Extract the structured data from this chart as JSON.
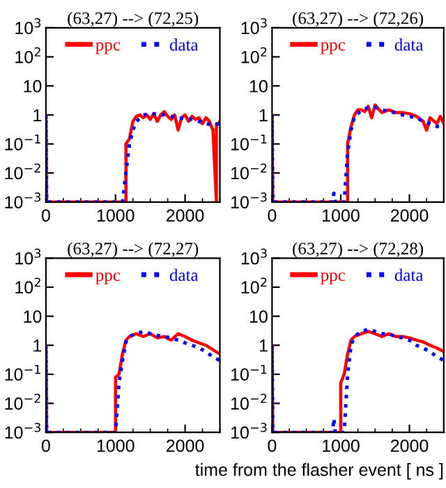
{
  "chart_data": [
    {
      "type": "line",
      "title": "(63,27) --> (72,25)",
      "log": "y",
      "xlim": [
        0,
        2500
      ],
      "xticks": [
        0,
        1000,
        2000
      ],
      "ylim": [
        0.001,
        1000
      ],
      "yticks": [
        {
          "value": 1000,
          "label": "10$^{3}$"
        },
        {
          "value": 100,
          "label": "10$^{2}$"
        },
        {
          "value": 10,
          "label": "10"
        },
        {
          "value": 1,
          "label": "1"
        },
        {
          "value": 0.1,
          "label": "10$^{−1}$"
        },
        {
          "value": 0.01,
          "label": "10$^{−2}$"
        },
        {
          "value": 0.001,
          "label": "10$^{−3}$"
        }
      ],
      "legend": "top",
      "grid": false,
      "series": [
        {
          "name": "ppc",
          "color": "#ff0000",
          "line_style": "solid",
          "x": [
            0,
            0,
            10,
            1150,
            1150,
            1200,
            1250,
            1300,
            1350,
            1400,
            1450,
            1500,
            1550,
            1600,
            1650,
            1700,
            1750,
            1800,
            1850,
            1900,
            1950,
            2000,
            2050,
            2100,
            2150,
            2200,
            2250,
            2300,
            2350,
            2400,
            2450,
            2450,
            2480,
            2500
          ],
          "values": [
            0.001,
            1,
            0.001,
            0.001,
            0.1,
            0.15,
            0.6,
            0.9,
            1.0,
            0.8,
            1.0,
            0.7,
            1.1,
            0.6,
            1.0,
            1.3,
            0.9,
            0.7,
            1.0,
            0.3,
            0.8,
            1.0,
            0.6,
            0.9,
            0.7,
            0.8,
            0.5,
            0.8,
            0.6,
            0.3,
            0.001,
            0.5,
            0.5,
            0.6
          ]
        },
        {
          "name": "data",
          "color": "#0000ff",
          "line_style": "dotted",
          "x": [
            0,
            0,
            10,
            1100,
            1150,
            1200,
            1250,
            1300,
            1400,
            1500,
            1600,
            1700,
            1800,
            1900,
            2000,
            2100,
            2200,
            2300,
            2400,
            2500
          ],
          "values": [
            0.001,
            1,
            0.001,
            0.001,
            0.01,
            0.1,
            0.3,
            0.6,
            1.0,
            1.1,
            1.1,
            1.0,
            0.9,
            0.8,
            0.75,
            0.7,
            0.6,
            0.5,
            0.45,
            0.5
          ]
        }
      ]
    },
    {
      "type": "line",
      "title": "(63,27) --> (72,26)",
      "log": "y",
      "xlim": [
        0,
        2500
      ],
      "xticks": [
        0,
        1000,
        2000
      ],
      "ylim": [
        0.001,
        1000
      ],
      "yticks": [
        {
          "value": 1000,
          "label": "10$^{3}$"
        },
        {
          "value": 100,
          "label": "10$^{2}$"
        },
        {
          "value": 10,
          "label": "10"
        },
        {
          "value": 1,
          "label": "1"
        },
        {
          "value": 0.1,
          "label": "10$^{−1}$"
        },
        {
          "value": 0.01,
          "label": "10$^{−2}$"
        },
        {
          "value": 0.001,
          "label": "10$^{−3}$"
        }
      ],
      "legend": "top",
      "grid": false,
      "series": [
        {
          "name": "ppc",
          "color": "#ff0000",
          "line_style": "solid",
          "x": [
            0,
            0,
            10,
            1100,
            1100,
            1150,
            1200,
            1250,
            1300,
            1350,
            1400,
            1450,
            1500,
            1550,
            1600,
            1700,
            1800,
            1900,
            2000,
            2100,
            2200,
            2250,
            2300,
            2400,
            2450,
            2500
          ],
          "values": [
            0.001,
            1,
            0.001,
            0.001,
            0.1,
            0.4,
            1.0,
            1.5,
            1.5,
            1.3,
            2.0,
            0.8,
            2.2,
            1.6,
            1.2,
            1.5,
            1.2,
            1.2,
            1.1,
            0.9,
            0.6,
            0.3,
            0.8,
            0.5,
            0.9,
            0.5
          ]
        },
        {
          "name": "data",
          "color": "#0000ff",
          "line_style": "dotted",
          "x": [
            0,
            0,
            10,
            880,
            900,
            920,
            1050,
            1100,
            1150,
            1200,
            1300,
            1400,
            1500,
            1600,
            1700,
            1800,
            1900,
            2000,
            2100,
            2200,
            2300,
            2400,
            2500
          ],
          "values": [
            0.001,
            1,
            0.001,
            0.001,
            0.002,
            0.001,
            0.001,
            0.05,
            0.3,
            0.9,
            1.4,
            1.8,
            1.8,
            1.5,
            1.3,
            1.2,
            1.0,
            0.9,
            0.8,
            0.6,
            0.5,
            0.4,
            0.4
          ]
        }
      ]
    },
    {
      "type": "line",
      "title": "(63,27) --> (72,27)",
      "log": "y",
      "xlim": [
        0,
        2500
      ],
      "xticks": [
        0,
        1000,
        2000
      ],
      "ylim": [
        0.001,
        1000
      ],
      "yticks": [
        {
          "value": 1000,
          "label": "10$^{3}$"
        },
        {
          "value": 100,
          "label": "10$^{2}$"
        },
        {
          "value": 10,
          "label": "10"
        },
        {
          "value": 1,
          "label": "1"
        },
        {
          "value": 0.1,
          "label": "10$^{−1}$"
        },
        {
          "value": 0.01,
          "label": "10$^{−2}$"
        },
        {
          "value": 0.001,
          "label": "10$^{−3}$"
        }
      ],
      "legend": "top",
      "grid": false,
      "series": [
        {
          "name": "ppc",
          "color": "#ff0000",
          "line_style": "solid",
          "x": [
            0,
            0,
            10,
            1000,
            1000,
            1050,
            1100,
            1150,
            1200,
            1300,
            1400,
            1500,
            1600,
            1700,
            1800,
            1900,
            2000,
            2100,
            2200,
            2300,
            2400,
            2500
          ],
          "values": [
            0.001,
            1,
            0.001,
            0.001,
            0.08,
            0.1,
            0.5,
            1.5,
            2.0,
            2.5,
            2.0,
            2.5,
            1.8,
            2.0,
            1.5,
            2.5,
            2.0,
            1.5,
            1.2,
            1.0,
            0.7,
            0.5
          ]
        },
        {
          "name": "data",
          "color": "#0000ff",
          "line_style": "dotted",
          "x": [
            0,
            0,
            10,
            1000,
            1050,
            1100,
            1150,
            1200,
            1300,
            1400,
            1500,
            1600,
            1700,
            1800,
            1900,
            2000,
            2100,
            2200,
            2300,
            2400,
            2500
          ],
          "values": [
            0.001,
            1,
            0.001,
            0.001,
            0.05,
            0.3,
            1.3,
            2.0,
            2.5,
            3.0,
            2.5,
            2.2,
            2.0,
            1.8,
            1.5,
            1.2,
            1.0,
            0.8,
            0.6,
            0.4,
            0.3
          ]
        }
      ]
    },
    {
      "type": "line",
      "title": "(63,27) --> (72,28)",
      "xlabel": "time from the flasher event [ ns ]",
      "log": "y",
      "xlim": [
        0,
        2500
      ],
      "xticks": [
        0,
        1000,
        2000
      ],
      "ylim": [
        0.001,
        1000
      ],
      "yticks": [
        {
          "value": 1000,
          "label": "10$^{3}$"
        },
        {
          "value": 100,
          "label": "10$^{2}$"
        },
        {
          "value": 10,
          "label": "10"
        },
        {
          "value": 1,
          "label": "1"
        },
        {
          "value": 0.1,
          "label": "10$^{−1}$"
        },
        {
          "value": 0.01,
          "label": "10$^{−2}$"
        },
        {
          "value": 0.001,
          "label": "10$^{−3}$"
        }
      ],
      "legend": "top",
      "grid": false,
      "series": [
        {
          "name": "ppc",
          "color": "#ff0000",
          "line_style": "solid",
          "x": [
            0,
            0,
            10,
            1000,
            1000,
            1050,
            1100,
            1150,
            1200,
            1300,
            1400,
            1500,
            1600,
            1700,
            1800,
            1900,
            2000,
            2100,
            2200,
            2300,
            2400,
            2500
          ],
          "values": [
            0.001,
            1,
            0.001,
            0.001,
            0.05,
            0.1,
            0.5,
            1.5,
            2.0,
            2.5,
            3.0,
            2.5,
            2.0,
            2.5,
            2.0,
            2.0,
            1.8,
            1.5,
            1.3,
            1.0,
            0.8,
            0.6
          ]
        },
        {
          "name": "data",
          "color": "#0000ff",
          "line_style": "dotted",
          "x": [
            0,
            0,
            10,
            880,
            900,
            920,
            1050,
            1100,
            1150,
            1200,
            1300,
            1400,
            1500,
            1600,
            1700,
            1800,
            1900,
            2000,
            2100,
            2200,
            2300,
            2400,
            2500
          ],
          "values": [
            0.001,
            1,
            0.001,
            0.001,
            0.003,
            0.001,
            0.001,
            0.1,
            1.0,
            2.0,
            3.0,
            3.5,
            3.0,
            2.5,
            2.5,
            2.0,
            1.8,
            1.5,
            1.0,
            0.8,
            0.6,
            0.4,
            0.3
          ]
        }
      ]
    }
  ]
}
